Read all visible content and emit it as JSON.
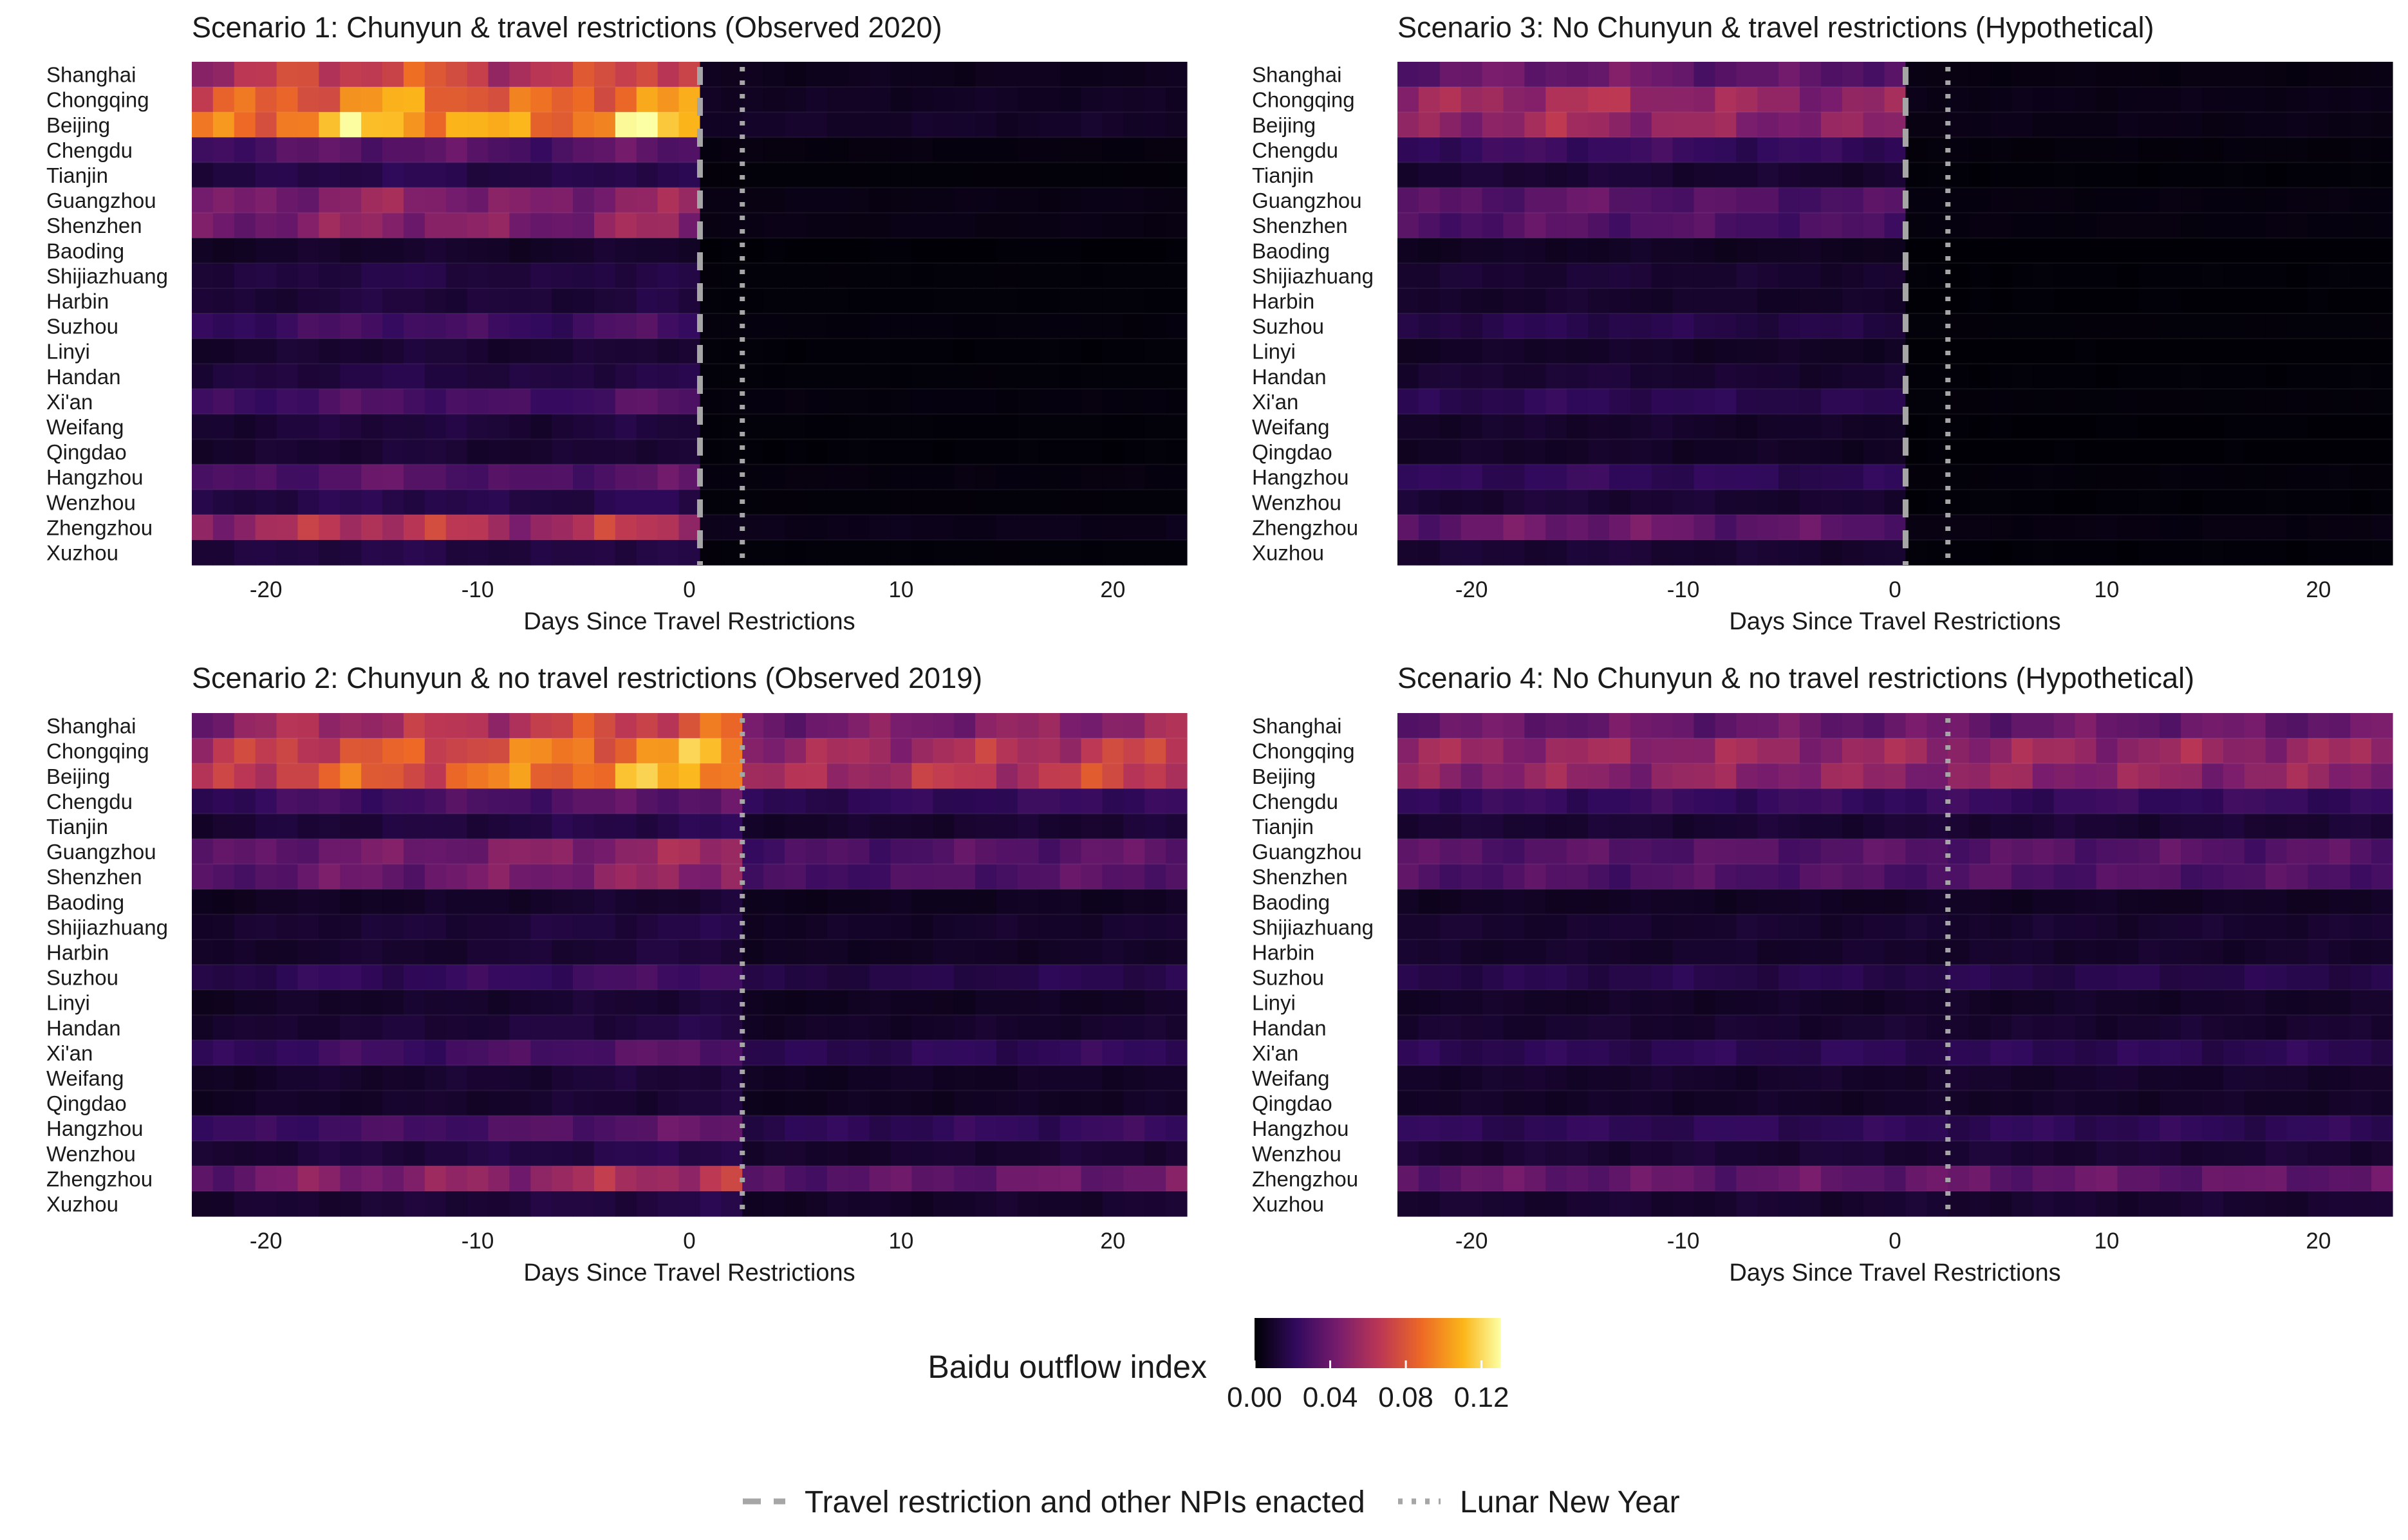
{
  "chart_data": [
    {
      "type": "heatmap",
      "panel": "scenario1",
      "title": "Scenario 1: Chunyun & travel restrictions (Observed 2020)",
      "xlabel": "Days Since Travel Restrictions",
      "xlim": [
        -23.5,
        23.5
      ],
      "xticks": [
        -20,
        -10,
        0,
        10,
        20
      ],
      "cities": [
        "Shanghai",
        "Chongqing",
        "Beijing",
        "Chengdu",
        "Tianjin",
        "Guangzhou",
        "Shenzhen",
        "Baoding",
        "Shijiazhuang",
        "Harbin",
        "Suzhou",
        "Linyi",
        "Handan",
        "Xi'an",
        "Weifang",
        "Qingdao",
        "Hangzhou",
        "Wenzhou",
        "Zhengzhou",
        "Xuzhou"
      ],
      "travel_restriction_day": 0.5,
      "lunar_new_year_day": 2.5,
      "city_levels": [
        0.075,
        0.095,
        0.11,
        0.035,
        0.018,
        0.05,
        0.05,
        0.01,
        0.016,
        0.014,
        0.028,
        0.012,
        0.016,
        0.03,
        0.014,
        0.012,
        0.034,
        0.018,
        0.065,
        0.016
      ],
      "post_level_ratio": 0.08,
      "profile": "rise_then_drop"
    },
    {
      "type": "heatmap",
      "panel": "scenario3",
      "title": "Scenario 3: No Chunyun & travel restrictions (Hypothetical)",
      "xlabel": "Days Since Travel Restrictions",
      "xlim": [
        -23.5,
        23.5
      ],
      "xticks": [
        -20,
        -10,
        0,
        10,
        20
      ],
      "cities": [
        "Shanghai",
        "Chongqing",
        "Beijing",
        "Chengdu",
        "Tianjin",
        "Guangzhou",
        "Shenzhen",
        "Baoding",
        "Shijiazhuang",
        "Harbin",
        "Suzhou",
        "Linyi",
        "Handan",
        "Xi'an",
        "Weifang",
        "Qingdao",
        "Hangzhou",
        "Wenzhou",
        "Zhengzhou",
        "Xuzhou"
      ],
      "travel_restriction_day": 0.5,
      "lunar_new_year_day": 2.5,
      "city_levels": [
        0.04,
        0.058,
        0.055,
        0.025,
        0.012,
        0.035,
        0.033,
        0.008,
        0.012,
        0.01,
        0.018,
        0.009,
        0.012,
        0.02,
        0.01,
        0.009,
        0.022,
        0.012,
        0.04,
        0.012
      ],
      "post_level_ratio": 0.08,
      "profile": "flat_then_drop"
    },
    {
      "type": "heatmap",
      "panel": "scenario2",
      "title": "Scenario 2: Chunyun & no travel restrictions (Observed 2019)",
      "xlabel": "Days Since Travel Restrictions",
      "xlim": [
        -23.5,
        23.5
      ],
      "xticks": [
        -20,
        -10,
        0,
        10,
        20
      ],
      "cities": [
        "Shanghai",
        "Chongqing",
        "Beijing",
        "Chengdu",
        "Tianjin",
        "Guangzhou",
        "Shenzhen",
        "Baoding",
        "Shijiazhuang",
        "Harbin",
        "Suzhou",
        "Linyi",
        "Handan",
        "Xi'an",
        "Weifang",
        "Qingdao",
        "Hangzhou",
        "Wenzhou",
        "Zhengzhou",
        "Xuzhou"
      ],
      "lunar_new_year_day": 2.5,
      "city_levels": [
        0.07,
        0.09,
        0.095,
        0.032,
        0.016,
        0.048,
        0.046,
        0.01,
        0.014,
        0.012,
        0.025,
        0.011,
        0.014,
        0.03,
        0.012,
        0.011,
        0.032,
        0.016,
        0.055,
        0.014
      ],
      "post_level_ratio": 0.55,
      "profile": "rise_then_moderate"
    },
    {
      "type": "heatmap",
      "panel": "scenario4",
      "title": "Scenario 4: No Chunyun & no travel restrictions (Hypothetical)",
      "xlabel": "Days Since Travel Restrictions",
      "xlim": [
        -23.5,
        23.5
      ],
      "xticks": [
        -20,
        -10,
        0,
        10,
        20
      ],
      "cities": [
        "Shanghai",
        "Chongqing",
        "Beijing",
        "Chengdu",
        "Tianjin",
        "Guangzhou",
        "Shenzhen",
        "Baoding",
        "Shijiazhuang",
        "Harbin",
        "Suzhou",
        "Linyi",
        "Handan",
        "Xi'an",
        "Weifang",
        "Qingdao",
        "Hangzhou",
        "Wenzhou",
        "Zhengzhou",
        "Xuzhou"
      ],
      "lunar_new_year_day": 2.5,
      "city_levels": [
        0.04,
        0.055,
        0.052,
        0.024,
        0.012,
        0.034,
        0.032,
        0.008,
        0.011,
        0.01,
        0.018,
        0.009,
        0.011,
        0.02,
        0.01,
        0.009,
        0.021,
        0.012,
        0.038,
        0.011
      ],
      "post_level_ratio": 0.95,
      "profile": "flat"
    }
  ],
  "colorbar": {
    "title": "Baidu outflow index",
    "ticks": [
      "0.00",
      "0.04",
      "0.08",
      "0.12"
    ],
    "range": [
      0,
      0.13
    ],
    "colors": [
      "#000004",
      "#320a5e",
      "#781c6d",
      "#bc3754",
      "#ed6925",
      "#fbb61a",
      "#fcffa4"
    ]
  },
  "legend": {
    "items": [
      {
        "label": "Travel restriction and other NPIs enacted",
        "line_style": "dashed",
        "color": "#a6a6a6"
      },
      {
        "label": "Lunar New Year",
        "line_style": "dotted",
        "color": "#a6a6a6"
      }
    ]
  }
}
